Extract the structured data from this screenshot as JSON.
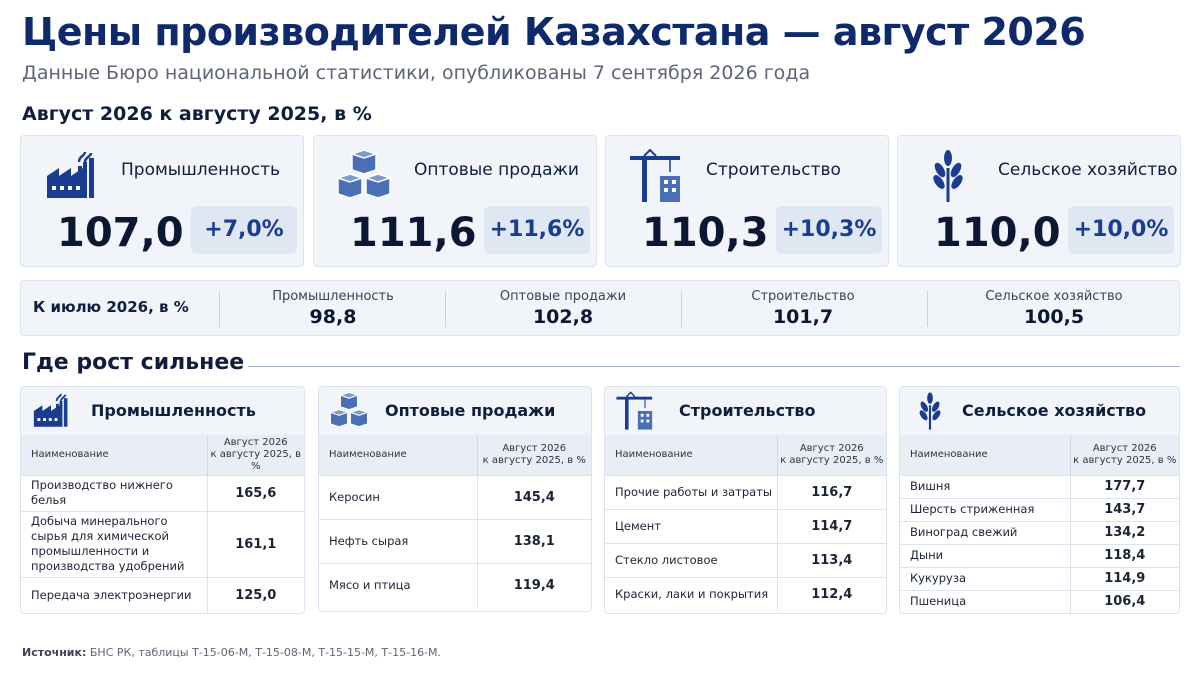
{
  "header": {
    "title": "Цены производителей Казахстана — август 2026",
    "subtitle": "Данные Бюро национальной статистики, опубликованы 7 сентября 2026 года"
  },
  "annual": {
    "heading": "Август 2026 к августу 2025, в %",
    "cards": [
      {
        "label": "Промышленность",
        "value": "107,0",
        "change": "+7,0%",
        "icon": "factory-icon"
      },
      {
        "label": "Оптовые продажи",
        "value": "111,6",
        "change": "+11,6%",
        "icon": "boxes-icon"
      },
      {
        "label": "Строительство",
        "value": "110,3",
        "change": "+10,3%",
        "icon": "crane-icon"
      },
      {
        "label": "Сельское хозяйство",
        "value": "110,0",
        "change": "+10,0%",
        "icon": "wheat-icon"
      }
    ]
  },
  "monthly": {
    "label": "К июлю 2026, в %",
    "items": [
      {
        "label": "Промышленность",
        "value": "98,8"
      },
      {
        "label": "Оптовые продажи",
        "value": "102,8"
      },
      {
        "label": "Строительство",
        "value": "101,7"
      },
      {
        "label": "Сельское хозяйство",
        "value": "100,5"
      }
    ]
  },
  "growth": {
    "heading": "Где рост сильнее",
    "col_name": "Наименование",
    "col_value_1": "Август 2026",
    "col_value_2": "к августу 2025, в %",
    "panels": [
      {
        "title": "Промышленность",
        "icon": "factory-icon",
        "rows": [
          {
            "name": "Производство нижнего белья",
            "value": "165,6"
          },
          {
            "name": "Добыча минерального сырья для химической промышленности и производства удобрений",
            "value": "161,1"
          },
          {
            "name": "Передача электроэнергии",
            "value": "125,0"
          }
        ]
      },
      {
        "title": "Оптовые продажи",
        "icon": "boxes-icon",
        "rows": [
          {
            "name": "Керосин",
            "value": "145,4"
          },
          {
            "name": "Нефть сырая",
            "value": "138,1"
          },
          {
            "name": "Мясо и птица",
            "value": "119,4"
          }
        ]
      },
      {
        "title": "Строительство",
        "icon": "crane-icon",
        "rows": [
          {
            "name": "Прочие работы и затраты",
            "value": "116,7"
          },
          {
            "name": "Цемент",
            "value": "114,7"
          },
          {
            "name": "Стекло листовое",
            "value": "113,4"
          },
          {
            "name": "Краски, лаки и покрытия",
            "value": "112,4"
          }
        ]
      },
      {
        "title": "Сельское хозяйство",
        "icon": "wheat-icon",
        "rows": [
          {
            "name": "Вишня",
            "value": "177,7"
          },
          {
            "name": "Шерсть стриженная",
            "value": "143,7"
          },
          {
            "name": "Виноград свежий",
            "value": "134,2"
          },
          {
            "name": "Дыни",
            "value": "118,4"
          },
          {
            "name": "Кукуруза",
            "value": "114,9"
          },
          {
            "name": "Пшеница",
            "value": "106,4"
          }
        ]
      }
    ]
  },
  "source": {
    "label": "Источник:",
    "text": "БНС РК, таблицы Т-15-06-М, Т-15-08-М, Т-15-15-М, Т-15-16-М."
  },
  "colors": {
    "accent": "#1a3d8f",
    "title": "#0f2a6b",
    "card_bg": "#f1f4f9"
  }
}
